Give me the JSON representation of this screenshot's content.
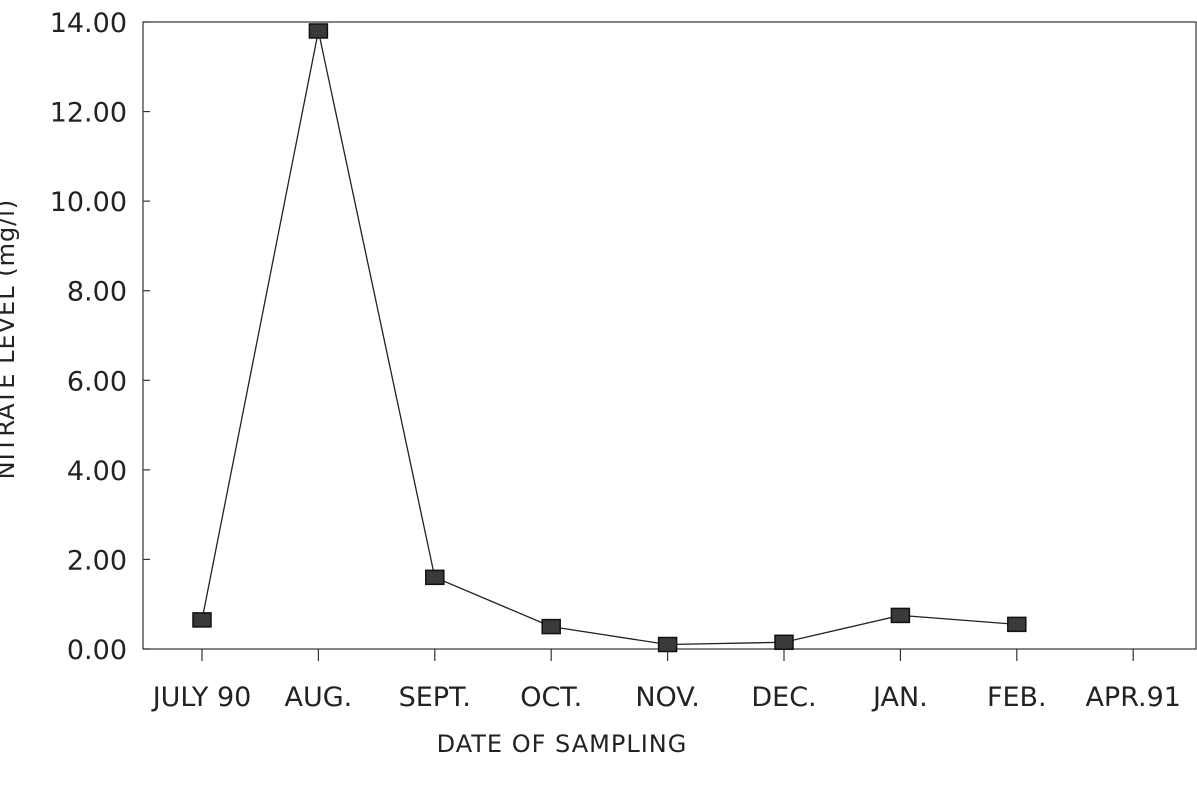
{
  "chart_data": {
    "type": "line",
    "xlabel": "DATE OF SAMPLING",
    "ylabel": "NITRATE LEVEL (mg/l)",
    "ylim": [
      0,
      14
    ],
    "yticks": [
      "0.00",
      "2.00",
      "4.00",
      "6.00",
      "8.00",
      "10.00",
      "12.00",
      "14.00"
    ],
    "categories": [
      "JULY 90",
      "AUG.",
      "SEPT.",
      "OCT.",
      "NOV.",
      "DEC.",
      "JAN.",
      "FEB.",
      "APR.91"
    ],
    "series": [
      {
        "values": [
          0.65,
          13.8,
          1.6,
          0.5,
          0.1,
          0.15,
          0.75,
          0.55,
          null
        ]
      }
    ],
    "marker": "square",
    "grid": false,
    "legend": "none"
  }
}
